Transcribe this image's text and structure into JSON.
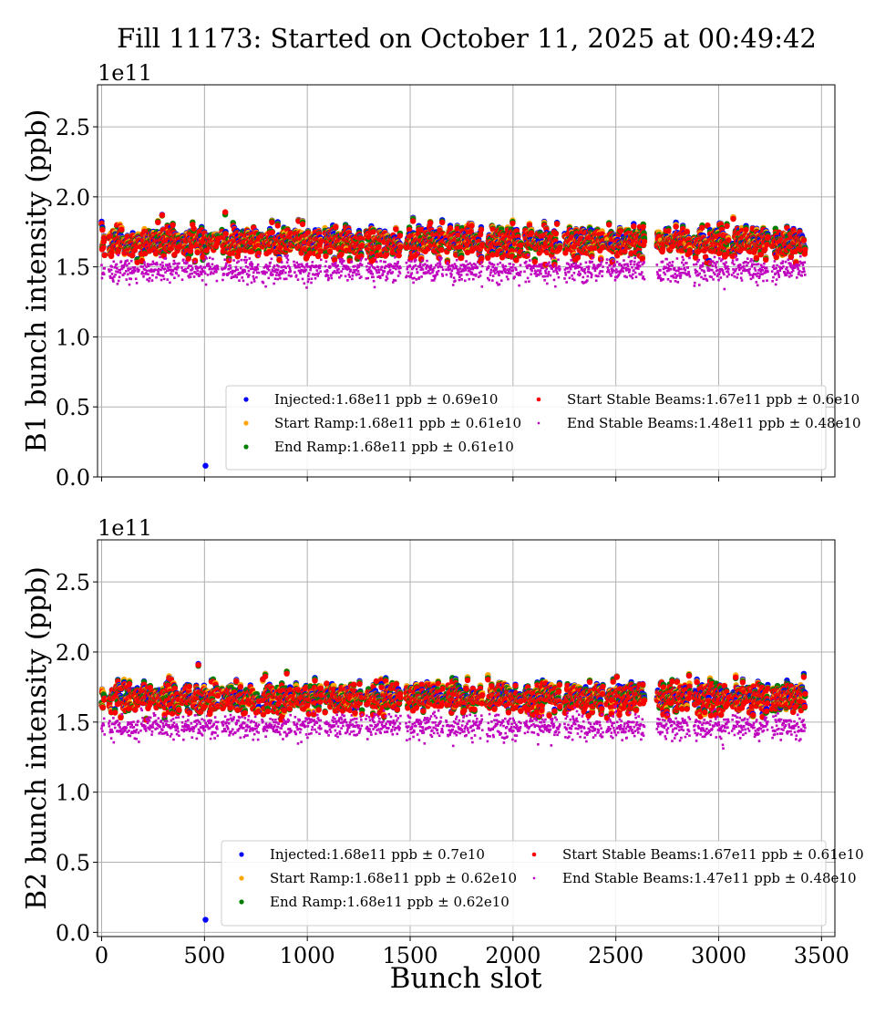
{
  "title": "Fill 11173: Started on October 11, 2025 at 00:49:42",
  "chart_data": [
    {
      "type": "scatter",
      "ylabel": "B1 bunch intensity (ppb)",
      "xlabel": "",
      "y_scale_label": "1e11",
      "xlim": [
        -20,
        3565
      ],
      "ylim": [
        0,
        2.8
      ],
      "xticks": [
        "0",
        "500",
        "1000",
        "1500",
        "2000",
        "2500",
        "3000",
        "3500"
      ],
      "xtick_values": [
        0,
        500,
        1000,
        1500,
        2000,
        2500,
        3000,
        3500
      ],
      "yticks": [
        "0.0",
        "0.5",
        "1.0",
        "1.5",
        "2.0",
        "2.5"
      ],
      "ytick_values": [
        0,
        0.5,
        1.0,
        1.5,
        2.0,
        2.5
      ],
      "grid": true,
      "legend_position": "lower-right",
      "trains": [
        [
          0,
          15
        ],
        [
          35,
          182
        ],
        [
          190,
          377
        ],
        [
          390,
          567
        ],
        [
          585,
          766
        ],
        [
          780,
          922
        ],
        [
          935,
          1068
        ],
        [
          1086,
          1267
        ],
        [
          1285,
          1453
        ],
        [
          1480,
          1661
        ],
        [
          1675,
          1852
        ],
        [
          1874,
          2038
        ],
        [
          2056,
          2229
        ],
        [
          2251,
          2437
        ],
        [
          2455,
          2640
        ],
        [
          2700,
          2860
        ],
        [
          2880,
          3050
        ],
        [
          3065,
          3240
        ],
        [
          3260,
          3420
        ]
      ],
      "series": [
        {
          "name": "Injected",
          "legend": "Injected:1.68e11 ppb ± 0.69e10",
          "mean": 1.68,
          "std": 0.069,
          "color": "#0000ff",
          "outliers": [
            [
              505,
              0.08
            ]
          ]
        },
        {
          "name": "Start Ramp",
          "legend": "Start Ramp:1.68e11 ppb ± 0.61e10",
          "mean": 1.68,
          "std": 0.061,
          "color": "#ffa500"
        },
        {
          "name": "End Ramp",
          "legend": "End Ramp:1.68e11 ppb ± 0.61e10",
          "mean": 1.68,
          "std": 0.061,
          "color": "#008000"
        },
        {
          "name": "Start Stable Beams",
          "legend": "Start Stable Beams:1.67e11 ppb ± 0.6e10",
          "mean": 1.67,
          "std": 0.06,
          "color": "#ff0000"
        },
        {
          "name": "End Stable Beams",
          "legend": "End Stable Beams:1.48e11 ppb ± 0.48e10",
          "mean": 1.48,
          "std": 0.048,
          "color": "#bf00bf"
        }
      ]
    },
    {
      "type": "scatter",
      "ylabel": "B2 bunch intensity (ppb)",
      "xlabel": "Bunch slot",
      "y_scale_label": "1e11",
      "xlim": [
        -20,
        3565
      ],
      "ylim": [
        -0.03,
        2.8
      ],
      "xticks": [
        "0",
        "500",
        "1000",
        "1500",
        "2000",
        "2500",
        "3000",
        "3500"
      ],
      "xtick_values": [
        0,
        500,
        1000,
        1500,
        2000,
        2500,
        3000,
        3500
      ],
      "yticks": [
        "0.0",
        "0.5",
        "1.0",
        "1.5",
        "2.0",
        "2.5"
      ],
      "ytick_values": [
        0,
        0.5,
        1.0,
        1.5,
        2.0,
        2.5
      ],
      "grid": true,
      "legend_position": "lower-right",
      "trains": [
        [
          0,
          15
        ],
        [
          35,
          182
        ],
        [
          190,
          377
        ],
        [
          390,
          567
        ],
        [
          585,
          766
        ],
        [
          780,
          922
        ],
        [
          935,
          1068
        ],
        [
          1086,
          1267
        ],
        [
          1285,
          1453
        ],
        [
          1480,
          1661
        ],
        [
          1675,
          1852
        ],
        [
          1874,
          2038
        ],
        [
          2056,
          2229
        ],
        [
          2251,
          2437
        ],
        [
          2455,
          2640
        ],
        [
          2700,
          2860
        ],
        [
          2880,
          3050
        ],
        [
          3065,
          3240
        ],
        [
          3260,
          3420
        ]
      ],
      "series": [
        {
          "name": "Injected",
          "legend": "Injected:1.68e11 ppb ± 0.7e10",
          "mean": 1.68,
          "std": 0.07,
          "color": "#0000ff",
          "outliers": [
            [
              505,
              0.09
            ]
          ]
        },
        {
          "name": "Start Ramp",
          "legend": "Start Ramp:1.68e11 ppb ± 0.62e10",
          "mean": 1.68,
          "std": 0.062,
          "color": "#ffa500"
        },
        {
          "name": "End Ramp",
          "legend": "End Ramp:1.68e11 ppb ± 0.62e10",
          "mean": 1.68,
          "std": 0.062,
          "color": "#008000"
        },
        {
          "name": "Start Stable Beams",
          "legend": "Start Stable Beams:1.67e11 ppb ± 0.61e10",
          "mean": 1.67,
          "std": 0.061,
          "color": "#ff0000"
        },
        {
          "name": "End Stable Beams",
          "legend": "End Stable Beams:1.47e11 ppb ± 0.48e10",
          "mean": 1.47,
          "std": 0.048,
          "color": "#bf00bf"
        }
      ]
    }
  ]
}
